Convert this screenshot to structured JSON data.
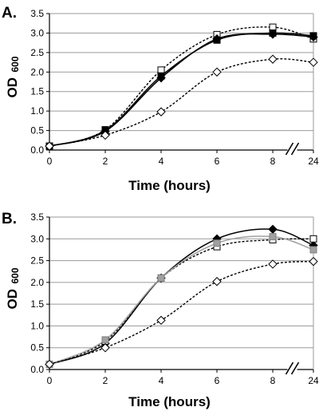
{
  "chart_data": [
    {
      "type": "line",
      "panel_label": "A.",
      "xlabel": "Time (hours)",
      "ylabel": "OD",
      "ylabel_sub": "600",
      "categories": [
        "0",
        "2",
        "4",
        "6",
        "8",
        "24"
      ],
      "ylim": [
        0,
        3.5
      ],
      "yticks": [
        "0.0",
        "0.5",
        "1.0",
        "1.5",
        "2.0",
        "2.5",
        "3.0",
        "3.5"
      ],
      "grid": true,
      "axis_break": "between 8 and 24",
      "series": [
        {
          "marker": "open-square",
          "line": "dotted",
          "color": "#000000",
          "values": [
            0.1,
            0.52,
            2.05,
            2.96,
            3.15,
            2.85
          ]
        },
        {
          "marker": "filled-square",
          "line": "solid",
          "color": "#000000",
          "values": [
            0.1,
            0.5,
            1.9,
            2.82,
            3.0,
            2.93
          ]
        },
        {
          "marker": "filled-diamond",
          "line": "solid",
          "color": "#000000",
          "values": [
            0.1,
            0.48,
            1.85,
            2.85,
            2.97,
            2.9
          ]
        },
        {
          "marker": "open-diamond",
          "line": "dotted",
          "color": "#000000",
          "values": [
            0.1,
            0.38,
            0.98,
            2.0,
            2.33,
            2.25
          ]
        }
      ]
    },
    {
      "type": "line",
      "panel_label": "B.",
      "xlabel": "Time (hours)",
      "ylabel": "OD",
      "ylabel_sub": "600",
      "categories": [
        "0",
        "2",
        "4",
        "6",
        "8",
        "24"
      ],
      "ylim": [
        0,
        3.5
      ],
      "yticks": [
        "0.0",
        "0.5",
        "1.0",
        "1.5",
        "2.0",
        "2.5",
        "3.0",
        "3.5"
      ],
      "grid": true,
      "axis_break": "between 8 and 24",
      "series": [
        {
          "marker": "filled-diamond",
          "line": "solid",
          "color": "#000000",
          "values": [
            0.12,
            0.6,
            2.1,
            3.0,
            3.22,
            2.85
          ]
        },
        {
          "marker": "open-square",
          "line": "dotted",
          "color": "#000000",
          "values": [
            0.12,
            0.65,
            2.1,
            2.82,
            2.98,
            3.0
          ]
        },
        {
          "marker": "filled-square",
          "line": "solid",
          "color": "#a0a0a0",
          "values": [
            0.12,
            0.68,
            2.1,
            2.9,
            3.05,
            2.75
          ]
        },
        {
          "marker": "open-diamond",
          "line": "dotted",
          "color": "#000000",
          "values": [
            0.12,
            0.5,
            1.13,
            2.02,
            2.42,
            2.48
          ]
        }
      ]
    }
  ]
}
